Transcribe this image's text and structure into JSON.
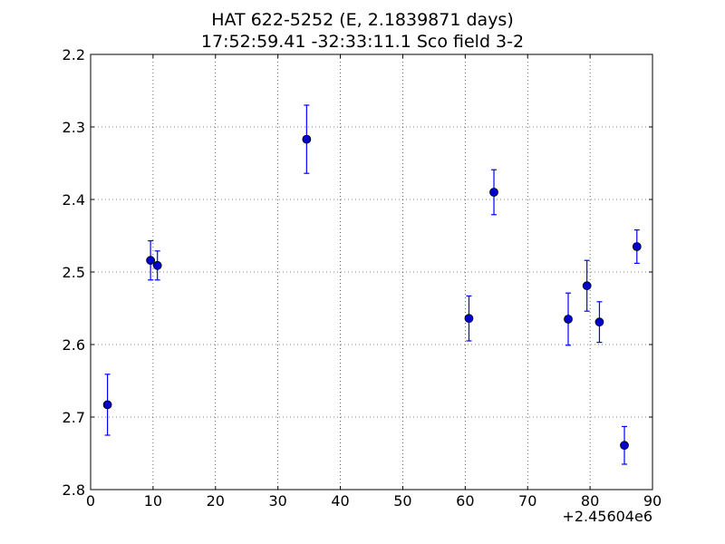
{
  "chart_data": {
    "type": "scatter",
    "title_lines": [
      "HAT 622-5252 (E, 2.1839871 days)",
      "17:52:59.41 -32:33:11.1 Sco field 3-2"
    ],
    "x_offset_label": "+2.45604e6",
    "xlim": [
      0,
      90
    ],
    "ylim": [
      2.2,
      2.8
    ],
    "y_inverted": true,
    "xticks": [
      0,
      10,
      20,
      30,
      40,
      50,
      60,
      70,
      80,
      90
    ],
    "yticks": [
      2.2,
      2.3,
      2.4,
      2.5,
      2.6,
      2.7,
      2.8
    ],
    "ytick_labels": [
      "2.2",
      "2.3",
      "2.4",
      "2.5",
      "2.6",
      "2.7",
      "2.8"
    ],
    "grid": true,
    "marker_color": "#0000cc",
    "errorbar_color": "#0000ff",
    "points": [
      {
        "x": 2.7,
        "y": 2.683,
        "err": 0.042
      },
      {
        "x": 9.6,
        "y": 2.484,
        "err": 0.027
      },
      {
        "x": 10.7,
        "y": 2.491,
        "err": 0.02
      },
      {
        "x": 34.6,
        "y": 2.317,
        "err": 0.047
      },
      {
        "x": 60.6,
        "y": 2.564,
        "err": 0.031
      },
      {
        "x": 64.6,
        "y": 2.39,
        "err": 0.031
      },
      {
        "x": 76.5,
        "y": 2.565,
        "err": 0.036
      },
      {
        "x": 79.5,
        "y": 2.519,
        "err": 0.035
      },
      {
        "x": 81.5,
        "y": 2.569,
        "err": 0.028
      },
      {
        "x": 85.5,
        "y": 2.739,
        "err": 0.026
      },
      {
        "x": 87.5,
        "y": 2.465,
        "err": 0.023
      }
    ]
  }
}
